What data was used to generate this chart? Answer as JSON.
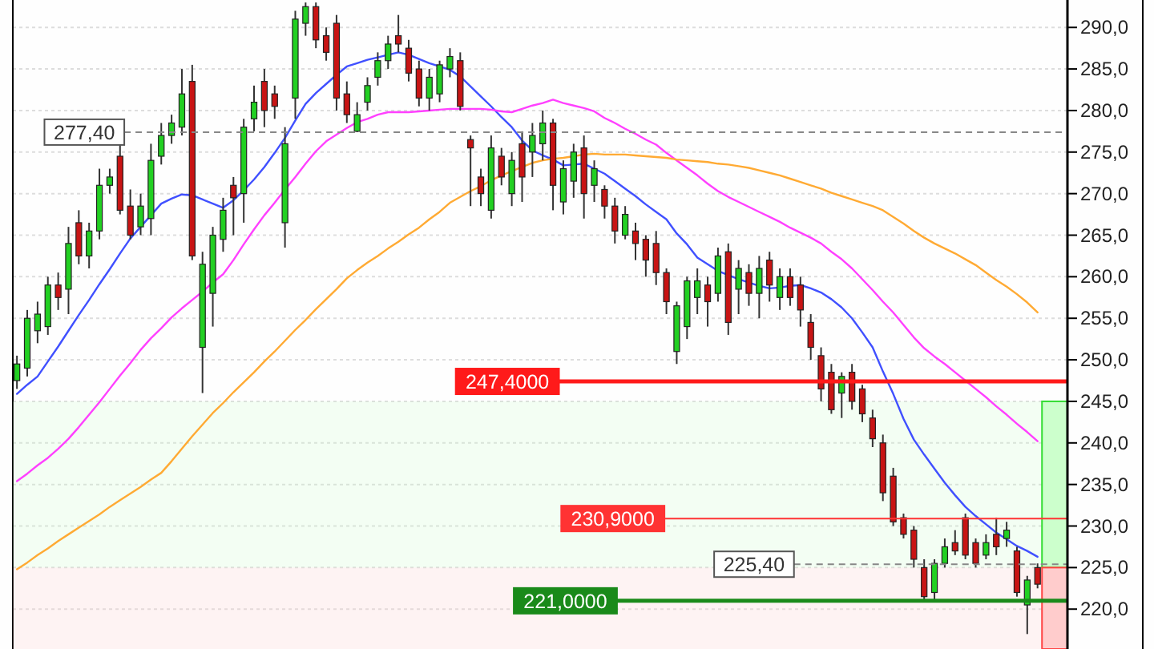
{
  "chart_data": {
    "type": "candlestick",
    "categories": [
      null,
      null,
      null,
      null,
      null,
      null,
      null,
      null,
      null,
      null,
      null,
      null,
      null,
      null,
      null,
      null,
      null,
      null,
      null,
      null,
      null,
      null,
      null,
      null,
      null,
      null,
      null,
      null,
      null,
      null,
      null,
      null,
      null,
      null,
      null,
      null,
      null,
      null,
      null,
      null,
      null,
      null,
      null,
      null,
      null,
      null,
      null,
      null,
      null,
      null,
      null,
      null,
      null,
      null,
      null,
      null,
      null,
      null,
      null,
      null,
      null,
      null,
      null,
      null,
      null,
      null,
      null,
      null,
      null,
      null,
      null,
      null,
      null,
      null,
      null,
      null,
      null,
      null,
      null,
      null,
      null,
      null,
      null,
      null,
      null,
      null,
      null,
      null,
      null,
      null,
      null,
      null,
      null,
      null,
      null,
      null,
      null,
      null,
      null,
      null
    ],
    "ohlc": [
      [
        247.5,
        250.5,
        246.5,
        249.5
      ],
      [
        249,
        256,
        248,
        255
      ],
      [
        253.5,
        257,
        252,
        255.5
      ],
      [
        254,
        260,
        253,
        259
      ],
      [
        259,
        260.5,
        256,
        257.5
      ],
      [
        258.5,
        266,
        255.5,
        264
      ],
      [
        266.5,
        268,
        261.5,
        262.5
      ],
      [
        262.5,
        266.5,
        261,
        265.5
      ],
      [
        265.5,
        273,
        264.5,
        271
      ],
      [
        271,
        273,
        270,
        272
      ],
      [
        274.5,
        276,
        267.5,
        268
      ],
      [
        268.5,
        270.5,
        264.5,
        265
      ],
      [
        266,
        270,
        265,
        268.5
      ],
      [
        267,
        276,
        265,
        274
      ],
      [
        274.5,
        278.5,
        273.5,
        277
      ],
      [
        277,
        279.5,
        276,
        278.5
      ],
      [
        278,
        285,
        277,
        282
      ],
      [
        283.5,
        285.5,
        262,
        262.5
      ],
      [
        251.5,
        263,
        246,
        261.5
      ],
      [
        258,
        266,
        254,
        265
      ],
      [
        264.5,
        269.5,
        263,
        268
      ],
      [
        271,
        272,
        265,
        269.5
      ],
      [
        270,
        279,
        266.5,
        278
      ],
      [
        279,
        283,
        277.5,
        281
      ],
      [
        283.5,
        285,
        278,
        280
      ],
      [
        282,
        283,
        279,
        280.5
      ],
      [
        266.5,
        278,
        263.5,
        276
      ],
      [
        281.5,
        292,
        279,
        291
      ],
      [
        290.5,
        293,
        289,
        292.5
      ],
      [
        292.5,
        293,
        287.5,
        288.5
      ],
      [
        289,
        290,
        286,
        287
      ],
      [
        290.5,
        291.5,
        280,
        281.5
      ],
      [
        282,
        283.5,
        278.5,
        279.5
      ],
      [
        277.5,
        281,
        277.4,
        279.5
      ],
      [
        281,
        284,
        280,
        283
      ],
      [
        284,
        287,
        283,
        286
      ],
      [
        286,
        289,
        285,
        288
      ],
      [
        289,
        291.5,
        287,
        288
      ],
      [
        287.5,
        288.5,
        283.5,
        284.5
      ],
      [
        285,
        286,
        280.5,
        281.5
      ],
      [
        281.5,
        285,
        280,
        284
      ],
      [
        282,
        286,
        281,
        285.5
      ],
      [
        285,
        287.5,
        284,
        286.5
      ],
      [
        286,
        287,
        280,
        280.5
      ],
      [
        276.5,
        277,
        268.5,
        275.5
      ],
      [
        272,
        273,
        268.5,
        270
      ],
      [
        268,
        277,
        267,
        275.5
      ],
      [
        274.5,
        275.5,
        271,
        272
      ],
      [
        270,
        275,
        268.5,
        274
      ],
      [
        276,
        277.5,
        269,
        272
      ],
      [
        275,
        278.5,
        272,
        277
      ],
      [
        276,
        280,
        274,
        278.5
      ],
      [
        278.5,
        279,
        268,
        271
      ],
      [
        269,
        274,
        267.5,
        273
      ],
      [
        271.5,
        276,
        269.5,
        275
      ],
      [
        275.5,
        277,
        267,
        270
      ],
      [
        271,
        274,
        269,
        273
      ],
      [
        270.5,
        271,
        267,
        268.5
      ],
      [
        268.5,
        269.5,
        264,
        265.5
      ],
      [
        265,
        268.5,
        264.5,
        267.5
      ],
      [
        265.5,
        266.5,
        262,
        264
      ],
      [
        264.5,
        265,
        260,
        262
      ],
      [
        264,
        265.5,
        259,
        260.5
      ],
      [
        260.5,
        261,
        255.5,
        257
      ],
      [
        251,
        257,
        249.5,
        256.5
      ],
      [
        254,
        260,
        252.5,
        259.5
      ],
      [
        257.5,
        261,
        255.5,
        259.5
      ],
      [
        259,
        260,
        254,
        257
      ],
      [
        258,
        263.5,
        257,
        262.5
      ],
      [
        263,
        264,
        253,
        254.5
      ],
      [
        258.5,
        262,
        255.5,
        261
      ],
      [
        260.5,
        261.5,
        256.5,
        258
      ],
      [
        258,
        262.5,
        255,
        261
      ],
      [
        262,
        263,
        257,
        259
      ],
      [
        257.5,
        261,
        256,
        260
      ],
      [
        260,
        261,
        256.5,
        257.5
      ],
      [
        259,
        260,
        254,
        256
      ],
      [
        254.5,
        255.5,
        250,
        251.5
      ],
      [
        250.5,
        251.5,
        245,
        246.5
      ],
      [
        248.5,
        249.5,
        243.5,
        244
      ],
      [
        246,
        248.5,
        243,
        248
      ],
      [
        248.5,
        249.5,
        244,
        245
      ],
      [
        246.5,
        247,
        242.5,
        243.5
      ],
      [
        243,
        244,
        239.5,
        240.5
      ],
      [
        240,
        241,
        233,
        234
      ],
      [
        236,
        237,
        230,
        230.5
      ],
      [
        231,
        231.5,
        228.5,
        229
      ],
      [
        229.5,
        230,
        225,
        226
      ],
      [
        225,
        226,
        221,
        221.5
      ],
      [
        222,
        226,
        221,
        225.5
      ],
      [
        225.5,
        228.5,
        225,
        227.5
      ],
      [
        228,
        229.5,
        226.5,
        227
      ],
      [
        231,
        231.5,
        226,
        226.5
      ],
      [
        228,
        228.5,
        225,
        225.5
      ],
      [
        226.5,
        229,
        226,
        228
      ],
      [
        229,
        231,
        226.5,
        227.5
      ],
      [
        228.5,
        230.5,
        227.5,
        229.5
      ],
      [
        227,
        227.5,
        221.5,
        222
      ],
      [
        220.5,
        224,
        217,
        223.5
      ],
      [
        225,
        225.5,
        222.5,
        223
      ]
    ],
    "colors": [
      "#22d022",
      "#22d022",
      "#22d022",
      "#22d022",
      "#c81414",
      "#22d022",
      "#c81414",
      "#22d022",
      "#22d022",
      "#22d022",
      "#c81414",
      "#c81414",
      "#22d022",
      "#22d022",
      "#22d022",
      "#22d022",
      "#22d022",
      "#c81414",
      "#22d022",
      "#22d022",
      "#22d022",
      "#c81414",
      "#22d022",
      "#22d022",
      "#c81414",
      "#c81414",
      "#22d022",
      "#22d022",
      "#22d022",
      "#c81414",
      "#c81414",
      "#c81414",
      "#c81414",
      "#22d022",
      "#22d022",
      "#22d022",
      "#22d022",
      "#c81414",
      "#c81414",
      "#c81414",
      "#22d022",
      "#22d022",
      "#22d022",
      "#c81414",
      "#c81414",
      "#c81414",
      "#22d022",
      "#c81414",
      "#22d022",
      "#c81414",
      "#22d022",
      "#22d022",
      "#c81414",
      "#22d022",
      "#22d022",
      "#c81414",
      "#22d022",
      "#c81414",
      "#c81414",
      "#22d022",
      "#c81414",
      "#c81414",
      "#c81414",
      "#c81414",
      "#22d022",
      "#22d022",
      "#22d022",
      "#c81414",
      "#22d022",
      "#c81414",
      "#22d022",
      "#c81414",
      "#22d022",
      "#c81414",
      "#22d022",
      "#c81414",
      "#c81414",
      "#c81414",
      "#c81414",
      "#c81414",
      "#22d022",
      "#c81414",
      "#c81414",
      "#c81414",
      "#c81414",
      "#c81414",
      "#c81414",
      "#c81414",
      "#c81414",
      "#22d022",
      "#22d022",
      "#c81414",
      "#c81414",
      "#c81414",
      "#22d022",
      "#c81414",
      "#22d022",
      "#c81414",
      "#22d022",
      "#c81414"
    ],
    "series": [
      {
        "type": "line",
        "color": "#4050ff",
        "values": [
          245.9,
          247.0,
          248.0,
          249.8,
          251.6,
          253.5,
          255.4,
          257.2,
          259.1,
          260.9,
          262.8,
          264.6,
          266.0,
          267.4,
          268.8,
          269.4,
          269.9,
          269.8,
          269.3,
          268.8,
          268.3,
          269.2,
          270.4,
          271.7,
          273.2,
          274.9,
          276.7,
          278.8,
          280.8,
          282.1,
          283.2,
          284.3,
          285.3,
          285.7,
          286.1,
          286.4,
          286.7,
          287.0,
          286.7,
          286.2,
          285.7,
          285.3,
          284.9,
          284.1,
          282.9,
          281.7,
          280.5,
          279.2,
          278.0,
          276.4,
          275.2,
          274.6,
          274.1,
          273.4,
          273.5,
          273.6,
          273.0,
          272.4,
          271.5,
          270.6,
          269.7,
          268.7,
          267.8,
          266.9,
          265.2,
          263.9,
          262.3,
          261.5,
          260.7,
          260.2,
          259.7,
          259.3,
          258.9,
          258.6,
          258.7,
          258.9,
          259.0,
          258.6,
          258.1,
          257.3,
          256.3,
          255.0,
          253.3,
          251.5,
          248.6,
          245.9,
          242.9,
          240.4,
          238.6,
          236.9,
          235.2,
          233.7,
          232.3,
          231.2,
          230.2,
          229.2,
          228.4,
          227.6,
          227.0,
          226.3
        ]
      },
      {
        "type": "line",
        "color": "#ff40ff",
        "values": [
          235.4,
          236.3,
          237.3,
          238.2,
          239.3,
          240.5,
          241.9,
          243.4,
          244.9,
          246.5,
          248.1,
          249.6,
          251.2,
          252.6,
          253.8,
          255.1,
          256.2,
          257.2,
          258.2,
          259.3,
          260.3,
          262.0,
          263.9,
          265.7,
          267.4,
          268.9,
          270.5,
          272.0,
          273.6,
          275.1,
          276.3,
          277.1,
          277.9,
          278.6,
          279.0,
          279.5,
          279.8,
          279.8,
          279.8,
          279.9,
          280.0,
          280.1,
          280.2,
          280.2,
          280.2,
          280.2,
          280.1,
          279.9,
          279.8,
          280.2,
          280.6,
          280.9,
          281.3,
          280.9,
          280.6,
          280.3,
          279.9,
          279.1,
          278.5,
          277.8,
          277.2,
          276.5,
          275.9,
          274.9,
          274.0,
          273.1,
          272.2,
          271.2,
          270.3,
          269.6,
          269.0,
          268.4,
          267.8,
          267.2,
          266.6,
          265.9,
          265.3,
          264.7,
          264.0,
          263.0,
          262.1,
          261.0,
          259.7,
          258.4,
          257.0,
          255.7,
          254.2,
          252.7,
          251.4,
          250.4,
          249.5,
          248.5,
          247.5,
          246.5,
          245.5,
          244.4,
          243.4,
          242.3,
          241.3,
          240.2
        ]
      },
      {
        "type": "line",
        "color": "#ffaa33",
        "values": [
          224.8,
          225.6,
          226.5,
          227.3,
          228.2,
          229.0,
          229.8,
          230.6,
          231.4,
          232.3,
          233.1,
          233.9,
          234.7,
          235.6,
          236.4,
          237.8,
          239.3,
          240.8,
          242.2,
          243.6,
          244.8,
          246.1,
          247.3,
          248.5,
          249.8,
          251.0,
          252.3,
          253.6,
          254.8,
          256.1,
          257.3,
          258.5,
          259.8,
          260.8,
          261.7,
          262.5,
          263.4,
          264.2,
          265.1,
          265.9,
          266.9,
          267.8,
          268.9,
          269.6,
          270.3,
          270.9,
          271.6,
          272.2,
          272.7,
          273.2,
          273.7,
          274.0,
          274.2,
          274.3,
          274.5,
          274.7,
          274.8,
          274.7,
          274.7,
          274.7,
          274.6,
          274.5,
          274.4,
          274.3,
          274.1,
          274.0,
          273.9,
          273.8,
          273.6,
          273.5,
          273.3,
          273.1,
          272.8,
          272.5,
          272.2,
          271.8,
          271.4,
          271.0,
          270.6,
          270.1,
          269.7,
          269.3,
          268.9,
          268.5,
          268.0,
          267.2,
          266.4,
          265.5,
          264.7,
          264.0,
          263.4,
          262.8,
          262.1,
          261.4,
          260.5,
          259.6,
          258.8,
          257.9,
          256.9,
          255.7
        ]
      }
    ],
    "ylim": [
      215.2,
      293.3
    ],
    "yticks": [
      {
        "value": 220,
        "label": "220,0"
      },
      {
        "value": 225,
        "label": "225,0"
      },
      {
        "value": 230,
        "label": "230,0"
      },
      {
        "value": 235,
        "label": "235,0"
      },
      {
        "value": 240,
        "label": "240,0"
      },
      {
        "value": 245,
        "label": "245,0"
      },
      {
        "value": 250,
        "label": "250,0"
      },
      {
        "value": 255,
        "label": "255,0"
      },
      {
        "value": 260,
        "label": "260,0"
      },
      {
        "value": 265,
        "label": "265,0"
      },
      {
        "value": 270,
        "label": "270,0"
      },
      {
        "value": 275,
        "label": "275,0"
      },
      {
        "value": 280,
        "label": "280,0"
      },
      {
        "value": 285,
        "label": "285,0"
      },
      {
        "value": 290,
        "label": "290,0"
      }
    ],
    "grid": "y",
    "tick_labels": "y",
    "ref_lines": [
      {
        "axis": "y",
        "value": 277.4,
        "label": "277,40",
        "color": "#888888",
        "line_style": "dashed"
      },
      {
        "axis": "y",
        "value": 247.4,
        "label": "247,4000",
        "color": "#ff1a1a"
      },
      {
        "axis": "y",
        "value": 230.9,
        "label": "230,9000",
        "color": "#ff3333"
      },
      {
        "axis": "y",
        "value": 221,
        "label": "221,0000",
        "color": "#1a8a1a"
      },
      {
        "axis": "y",
        "value": 225.4,
        "label": "225,40",
        "color": "#888888",
        "line_style": "dashed"
      }
    ],
    "bands": [
      {
        "axis": "y",
        "from": 225,
        "to": 245,
        "color": "#ccffcc"
      },
      {
        "axis": "y",
        "from": 215.2,
        "to": 225,
        "color": "#ffcccc"
      }
    ]
  }
}
